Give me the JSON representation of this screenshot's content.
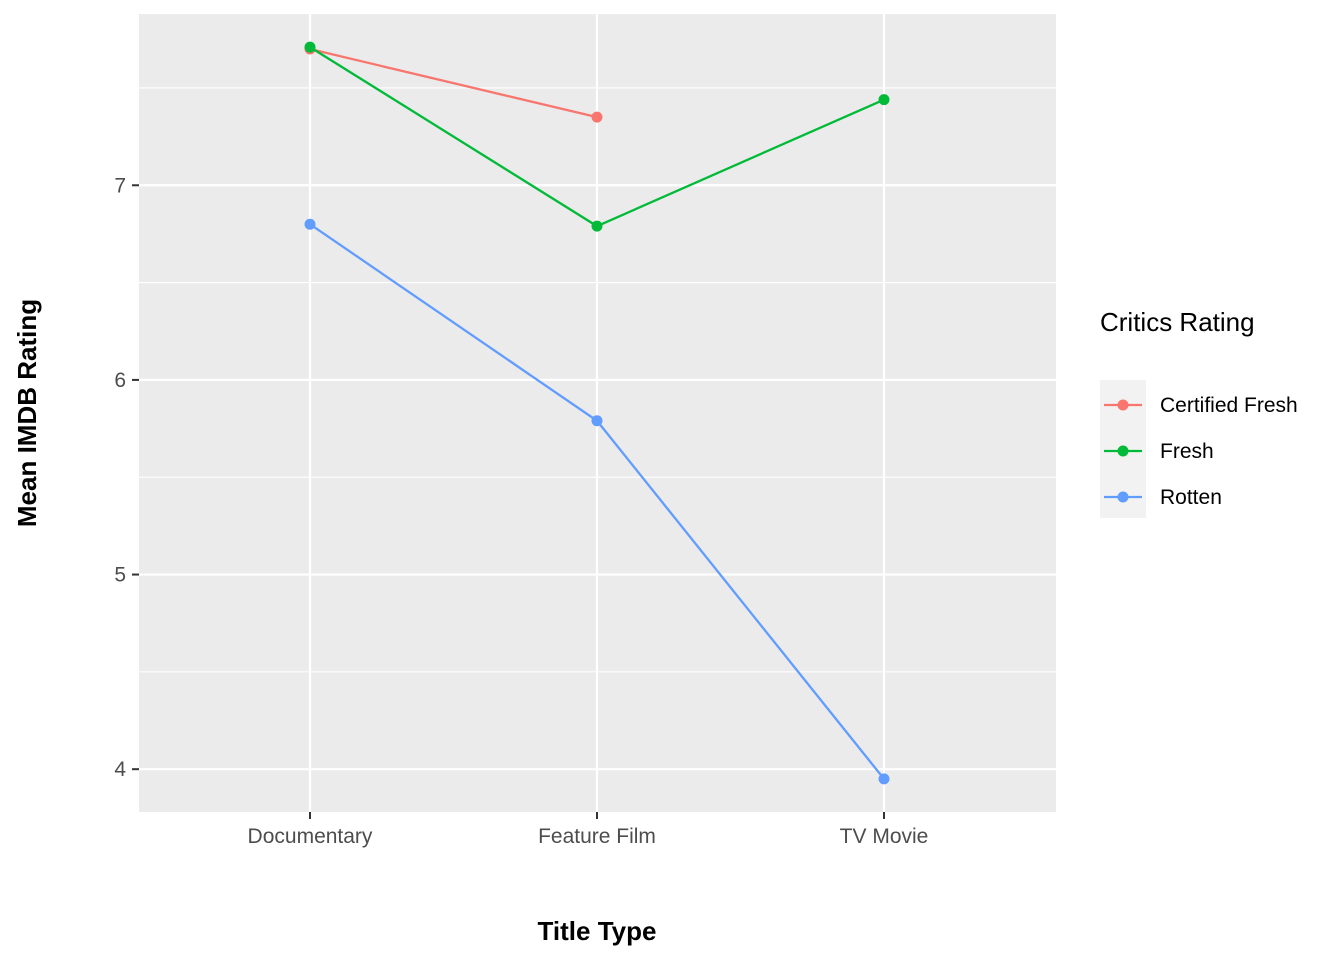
{
  "chart_data": {
    "type": "line",
    "categories": [
      "Documentary",
      "Feature Film",
      "TV Movie"
    ],
    "xlabel": "Title Type",
    "ylabel": "Mean IMDB Rating",
    "ylim": [
      3.78,
      7.88
    ],
    "yticks": [
      4,
      5,
      6,
      7
    ],
    "grid": true,
    "legend": {
      "title": "Critics Rating",
      "position": "right"
    },
    "series": [
      {
        "name": "Certified Fresh",
        "color": "#F8766D",
        "values": [
          7.7,
          7.35,
          null
        ]
      },
      {
        "name": "Fresh",
        "color": "#00BA38",
        "values": [
          7.71,
          6.79,
          7.44
        ]
      },
      {
        "name": "Rotten",
        "color": "#619CFF",
        "values": [
          6.8,
          5.79,
          3.95
        ]
      }
    ]
  }
}
